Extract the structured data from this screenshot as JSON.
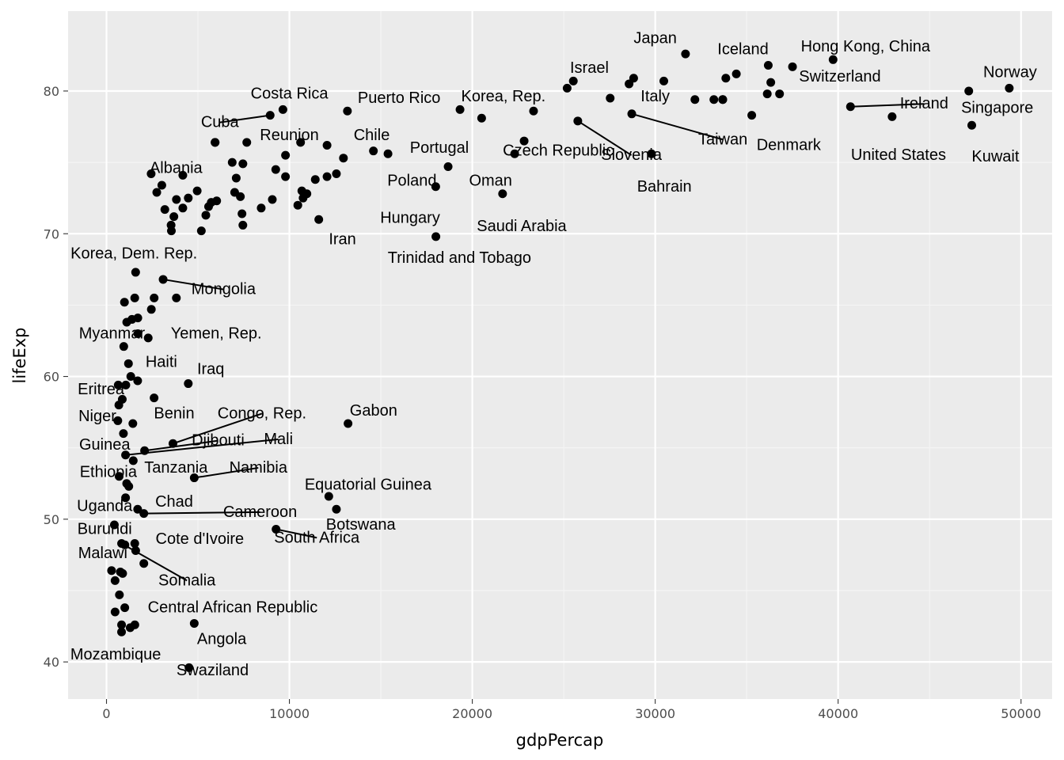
{
  "chart_data": {
    "type": "scatter",
    "title": "",
    "xlabel": "gdpPercap",
    "ylabel": "lifeExp",
    "xlim": [
      -2100,
      51700
    ],
    "ylim": [
      37.4,
      85.6
    ],
    "x_ticks": [
      0,
      10000,
      20000,
      30000,
      40000,
      50000
    ],
    "x_tick_labels": [
      "0",
      "10000",
      "20000",
      "30000",
      "40000",
      "50000"
    ],
    "y_ticks": [
      40,
      50,
      60,
      70,
      80
    ],
    "y_tick_labels": [
      "40",
      "50",
      "60",
      "70",
      "80"
    ],
    "grid": true,
    "legend": "none",
    "colors": {
      "panel": "#ebebeb",
      "grid_major": "#ffffff",
      "grid_minor": "#f5f5f5",
      "point": "#000000",
      "segment": "#000000"
    },
    "points": [
      {
        "x": 31656,
        "y": 82.6
      },
      {
        "x": 25523,
        "y": 80.7
      },
      {
        "x": 39725,
        "y": 82.2
      },
      {
        "x": 36181,
        "y": 81.8
      },
      {
        "x": 37506,
        "y": 81.7
      },
      {
        "x": 34435,
        "y": 81.2
      },
      {
        "x": 33860,
        "y": 80.9
      },
      {
        "x": 28821,
        "y": 80.9
      },
      {
        "x": 30470,
        "y": 80.7
      },
      {
        "x": 28570,
        "y": 80.5
      },
      {
        "x": 25185,
        "y": 80.2
      },
      {
        "x": 36319,
        "y": 80.6
      },
      {
        "x": 49357,
        "y": 80.2
      },
      {
        "x": 47143,
        "y": 80.0
      },
      {
        "x": 36126,
        "y": 79.8
      },
      {
        "x": 36798,
        "y": 79.8
      },
      {
        "x": 27538,
        "y": 79.5
      },
      {
        "x": 32170,
        "y": 79.4
      },
      {
        "x": 33207,
        "y": 79.4
      },
      {
        "x": 33693,
        "y": 79.4
      },
      {
        "x": 33692,
        "y": 79.4
      },
      {
        "x": 40676,
        "y": 78.9
      },
      {
        "x": 28718,
        "y": 78.4
      },
      {
        "x": 35278,
        "y": 78.3
      },
      {
        "x": 42952,
        "y": 78.2
      },
      {
        "x": 47307,
        "y": 77.6
      },
      {
        "x": 25768,
        "y": 77.9
      },
      {
        "x": 29796,
        "y": 75.6
      },
      {
        "x": 19328,
        "y": 78.7
      },
      {
        "x": 20510,
        "y": 78.1
      },
      {
        "x": 23348,
        "y": 78.6
      },
      {
        "x": 13172,
        "y": 78.6
      },
      {
        "x": 22833,
        "y": 76.5
      },
      {
        "x": 22316,
        "y": 75.6
      },
      {
        "x": 18678,
        "y": 74.7
      },
      {
        "x": 21655,
        "y": 72.8
      },
      {
        "x": 17999,
        "y": 73.3
      },
      {
        "x": 18009,
        "y": 69.8
      },
      {
        "x": 9646,
        "y": 78.7
      },
      {
        "x": 8948,
        "y": 78.3
      },
      {
        "x": 14593,
        "y": 75.8
      },
      {
        "x": 15390,
        "y": 75.6
      },
      {
        "x": 12954,
        "y": 75.3
      },
      {
        "x": 10611,
        "y": 76.4
      },
      {
        "x": 12058,
        "y": 76.2
      },
      {
        "x": 7670,
        "y": 76.4
      },
      {
        "x": 5937,
        "y": 76.4
      },
      {
        "x": 9787,
        "y": 75.5
      },
      {
        "x": 7458,
        "y": 74.9
      },
      {
        "x": 6873,
        "y": 75.0
      },
      {
        "x": 9253,
        "y": 74.5
      },
      {
        "x": 7093,
        "y": 73.9
      },
      {
        "x": 9786,
        "y": 74.0
      },
      {
        "x": 11415,
        "y": 73.8
      },
      {
        "x": 12057,
        "y": 74.0
      },
      {
        "x": 12570,
        "y": 74.2
      },
      {
        "x": 10680,
        "y": 73.0
      },
      {
        "x": 10957,
        "y": 72.8
      },
      {
        "x": 10749,
        "y": 72.5
      },
      {
        "x": 10461,
        "y": 72.0
      },
      {
        "x": 9066,
        "y": 72.4
      },
      {
        "x": 8458,
        "y": 71.8
      },
      {
        "x": 11606,
        "y": 71.0
      },
      {
        "x": 7007,
        "y": 72.9
      },
      {
        "x": 7320,
        "y": 72.6
      },
      {
        "x": 7408,
        "y": 71.4
      },
      {
        "x": 7456,
        "y": 70.6
      },
      {
        "x": 6025,
        "y": 72.3
      },
      {
        "x": 5728,
        "y": 72.2
      },
      {
        "x": 5581,
        "y": 71.9
      },
      {
        "x": 5431,
        "y": 71.3
      },
      {
        "x": 4959,
        "y": 73.0
      },
      {
        "x": 4471,
        "y": 72.5
      },
      {
        "x": 4173,
        "y": 71.8
      },
      {
        "x": 3822,
        "y": 72.4
      },
      {
        "x": 3685,
        "y": 71.2
      },
      {
        "x": 3532,
        "y": 70.6
      },
      {
        "x": 3548,
        "y": 70.2
      },
      {
        "x": 5186,
        "y": 70.2
      },
      {
        "x": 5937,
        "y": 76.4
      },
      {
        "x": 2441,
        "y": 74.2
      },
      {
        "x": 4173,
        "y": 74.1
      },
      {
        "x": 3025,
        "y": 73.4
      },
      {
        "x": 2749,
        "y": 72.9
      },
      {
        "x": 3190,
        "y": 71.7
      },
      {
        "x": 1593,
        "y": 67.3
      },
      {
        "x": 3096,
        "y": 66.8
      },
      {
        "x": 3820,
        "y": 65.5
      },
      {
        "x": 1544,
        "y": 65.5
      },
      {
        "x": 2605,
        "y": 65.5
      },
      {
        "x": 982,
        "y": 65.2
      },
      {
        "x": 2452,
        "y": 64.7
      },
      {
        "x": 1713,
        "y": 64.1
      },
      {
        "x": 1391,
        "y": 64.0
      },
      {
        "x": 1107,
        "y": 63.8
      },
      {
        "x": 1714,
        "y": 63.0
      },
      {
        "x": 2281,
        "y": 62.7
      },
      {
        "x": 944,
        "y": 62.1
      },
      {
        "x": 1201,
        "y": 60.9
      },
      {
        "x": 1328,
        "y": 60.0
      },
      {
        "x": 1704,
        "y": 59.7
      },
      {
        "x": 4471,
        "y": 59.5
      },
      {
        "x": 642,
        "y": 59.4
      },
      {
        "x": 1057,
        "y": 59.4
      },
      {
        "x": 863,
        "y": 58.4
      },
      {
        "x": 2602,
        "y": 58.5
      },
      {
        "x": 675,
        "y": 58.0
      },
      {
        "x": 619,
        "y": 56.9
      },
      {
        "x": 1441,
        "y": 56.7
      },
      {
        "x": 13206,
        "y": 56.7
      },
      {
        "x": 926,
        "y": 56.0
      },
      {
        "x": 3633,
        "y": 55.3
      },
      {
        "x": 2082,
        "y": 54.8
      },
      {
        "x": 1042,
        "y": 54.5
      },
      {
        "x": 1463,
        "y": 54.1
      },
      {
        "x": 4797,
        "y": 52.9
      },
      {
        "x": 691,
        "y": 53.0
      },
      {
        "x": 1103,
        "y": 52.5
      },
      {
        "x": 1219,
        "y": 52.3
      },
      {
        "x": 12154,
        "y": 51.6
      },
      {
        "x": 1043,
        "y": 51.5
      },
      {
        "x": 12570,
        "y": 50.7
      },
      {
        "x": 1704,
        "y": 50.7
      },
      {
        "x": 2042,
        "y": 50.4
      },
      {
        "x": 9270,
        "y": 49.3
      },
      {
        "x": 430,
        "y": 49.6
      },
      {
        "x": 824,
        "y": 48.3
      },
      {
        "x": 1545,
        "y": 48.3
      },
      {
        "x": 1005,
        "y": 48.2
      },
      {
        "x": 1596,
        "y": 47.8
      },
      {
        "x": 2042,
        "y": 46.9
      },
      {
        "x": 277,
        "y": 46.4
      },
      {
        "x": 759,
        "y": 46.3
      },
      {
        "x": 883,
        "y": 46.2
      },
      {
        "x": 469,
        "y": 45.7
      },
      {
        "x": 706,
        "y": 44.7
      },
      {
        "x": 470,
        "y": 43.5
      },
      {
        "x": 1000,
        "y": 43.8
      },
      {
        "x": 4797,
        "y": 42.7
      },
      {
        "x": 824,
        "y": 42.6
      },
      {
        "x": 1550,
        "y": 42.6
      },
      {
        "x": 1295,
        "y": 42.4
      },
      {
        "x": 823,
        "y": 42.1
      },
      {
        "x": 4513,
        "y": 39.6
      }
    ],
    "labels": [
      {
        "text": "Japan",
        "x": 30000,
        "y": 83.7
      },
      {
        "text": "Iceland",
        "x": 34800,
        "y": 82.9
      },
      {
        "text": "Hong Kong, China",
        "x": 41500,
        "y": 83.1
      },
      {
        "text": "Israel",
        "x": 26400,
        "y": 81.6
      },
      {
        "text": "Switzerland",
        "x": 40100,
        "y": 81.0
      },
      {
        "text": "Norway",
        "x": 49400,
        "y": 81.3
      },
      {
        "text": "Italy",
        "x": 30000,
        "y": 79.6
      },
      {
        "text": "Ireland",
        "x": 44700,
        "y": 79.1,
        "sx": 40676,
        "sy": 78.9
      },
      {
        "text": "Singapore",
        "x": 48700,
        "y": 78.8
      },
      {
        "text": "Taiwan",
        "x": 33700,
        "y": 76.6,
        "sx": 28718,
        "sy": 78.4
      },
      {
        "text": "Denmark",
        "x": 37300,
        "y": 76.2
      },
      {
        "text": "United States",
        "x": 43300,
        "y": 75.5
      },
      {
        "text": "Kuwait",
        "x": 48600,
        "y": 75.4
      },
      {
        "text": "Slovenia",
        "x": 28700,
        "y": 75.5,
        "sx": 25768,
        "sy": 77.9
      },
      {
        "text": "Bahrain",
        "x": 30500,
        "y": 73.3
      },
      {
        "text": "Costa Rica",
        "x": 10000,
        "y": 79.8
      },
      {
        "text": "Puerto Rico",
        "x": 16000,
        "y": 79.5
      },
      {
        "text": "Korea, Rep.",
        "x": 21700,
        "y": 79.6
      },
      {
        "text": "Cuba",
        "x": 6200,
        "y": 77.8,
        "sx": 8948,
        "sy": 78.3
      },
      {
        "text": "Reunion",
        "x": 10000,
        "y": 76.9
      },
      {
        "text": "Chile",
        "x": 14500,
        "y": 76.9
      },
      {
        "text": "Portugal",
        "x": 18200,
        "y": 76.0
      },
      {
        "text": "Czech Republic",
        "x": 24700,
        "y": 75.8
      },
      {
        "text": "Albania",
        "x": 3800,
        "y": 74.6
      },
      {
        "text": "Poland",
        "x": 16700,
        "y": 73.7
      },
      {
        "text": "Oman",
        "x": 21000,
        "y": 73.7
      },
      {
        "text": "Hungary",
        "x": 16600,
        "y": 71.1
      },
      {
        "text": "Saudi Arabia",
        "x": 22700,
        "y": 70.5
      },
      {
        "text": "Iran",
        "x": 12900,
        "y": 69.6
      },
      {
        "text": "Trinidad and Tobago",
        "x": 19300,
        "y": 68.3
      },
      {
        "text": "Korea, Dem. Rep.",
        "x": 1500,
        "y": 68.6
      },
      {
        "text": "Mongolia",
        "x": 6400,
        "y": 66.1,
        "sx": 3096,
        "sy": 66.8
      },
      {
        "text": "Myanmar",
        "x": 300,
        "y": 63.0
      },
      {
        "text": "Yemen, Rep.",
        "x": 6000,
        "y": 63.0
      },
      {
        "text": "Haiti",
        "x": 3000,
        "y": 61.0
      },
      {
        "text": "Iraq",
        "x": 5700,
        "y": 60.5
      },
      {
        "text": "Eritrea",
        "x": -300,
        "y": 59.1
      },
      {
        "text": "Niger",
        "x": -500,
        "y": 57.2
      },
      {
        "text": "Benin",
        "x": 3700,
        "y": 57.4
      },
      {
        "text": "Congo, Rep.",
        "x": 8500,
        "y": 57.4,
        "sx": 3633,
        "sy": 55.3
      },
      {
        "text": "Gabon",
        "x": 14600,
        "y": 57.6
      },
      {
        "text": "Guinea",
        "x": -100,
        "y": 55.2
      },
      {
        "text": "Djibouti",
        "x": 6100,
        "y": 55.5,
        "sx": 2082,
        "sy": 54.8
      },
      {
        "text": "Mali",
        "x": 9400,
        "y": 55.6,
        "sx": 1042,
        "sy": 54.5
      },
      {
        "text": "Ethiopia",
        "x": 100,
        "y": 53.3
      },
      {
        "text": "Tanzania",
        "x": 3800,
        "y": 53.6
      },
      {
        "text": "Namibia",
        "x": 8300,
        "y": 53.6,
        "sx": 4797,
        "sy": 52.9
      },
      {
        "text": "Equatorial Guinea",
        "x": 14300,
        "y": 52.4
      },
      {
        "text": "Chad",
        "x": 3700,
        "y": 51.2
      },
      {
        "text": "Uganda",
        "x": -100,
        "y": 50.9
      },
      {
        "text": "Cameroon",
        "x": 8400,
        "y": 50.5,
        "sx": 2042,
        "sy": 50.4
      },
      {
        "text": "Botswana",
        "x": 13900,
        "y": 49.6
      },
      {
        "text": "Burundi",
        "x": -100,
        "y": 49.3
      },
      {
        "text": "Cote d'Ivoire",
        "x": 5100,
        "y": 48.6
      },
      {
        "text": "South Africa",
        "x": 11500,
        "y": 48.7,
        "sx": 9270,
        "sy": 49.3
      },
      {
        "text": "Malawi",
        "x": -200,
        "y": 47.6
      },
      {
        "text": "Somalia",
        "x": 4400,
        "y": 45.7,
        "sx": 824,
        "sy": 48.3
      },
      {
        "text": "Central African Republic",
        "x": 6900,
        "y": 43.8
      },
      {
        "text": "Angola",
        "x": 6300,
        "y": 41.6
      },
      {
        "text": "Mozambique",
        "x": 500,
        "y": 40.5
      },
      {
        "text": "Swaziland",
        "x": 5800,
        "y": 39.4
      }
    ]
  }
}
